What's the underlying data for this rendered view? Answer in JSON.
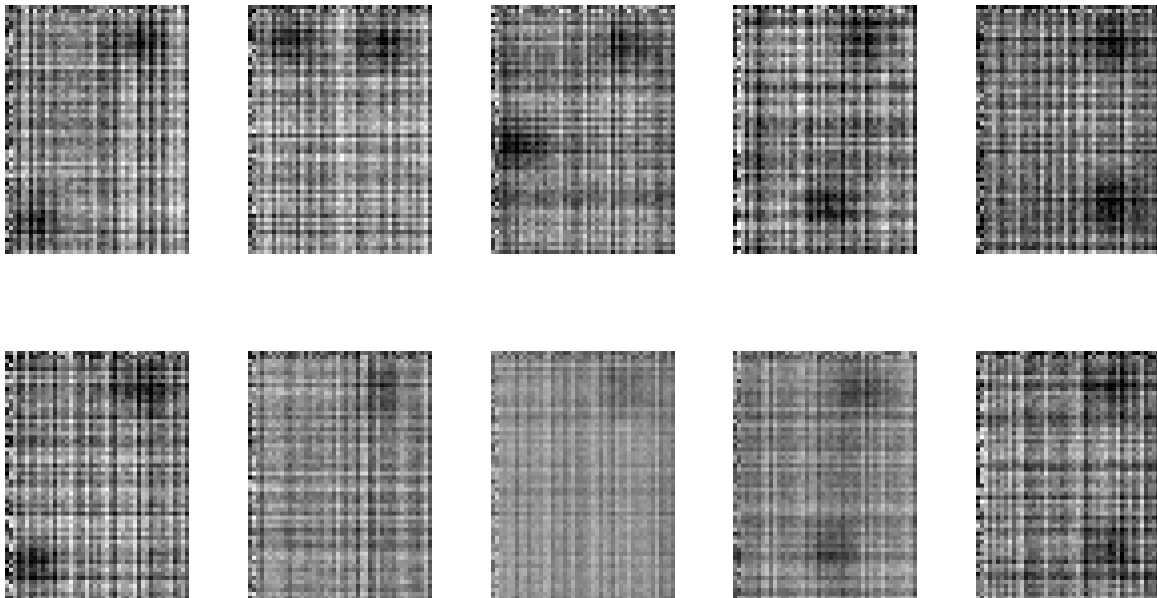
{
  "figure": {
    "rows": 2,
    "cols": 5,
    "panels": [
      {
        "row": 0,
        "col": 0,
        "seed": 11,
        "contrast": 1.0,
        "base": 0.56,
        "dark_regions": [
          "top-right",
          "bottom-left"
        ]
      },
      {
        "row": 0,
        "col": 1,
        "seed": 23,
        "contrast": 0.95,
        "base": 0.58,
        "dark_regions": [
          "top-left",
          "top-right"
        ]
      },
      {
        "row": 0,
        "col": 2,
        "seed": 37,
        "contrast": 0.92,
        "base": 0.52,
        "dark_regions": [
          "top-right",
          "middle-left"
        ]
      },
      {
        "row": 0,
        "col": 3,
        "seed": 41,
        "contrast": 1.05,
        "base": 0.48,
        "dark_regions": [
          "top-right",
          "bottom-middle"
        ]
      },
      {
        "row": 0,
        "col": 4,
        "seed": 53,
        "contrast": 1.0,
        "base": 0.5,
        "dark_regions": [
          "top-right",
          "bottom-right"
        ]
      },
      {
        "row": 1,
        "col": 0,
        "seed": 67,
        "contrast": 1.0,
        "base": 0.56,
        "dark_regions": [
          "top-right",
          "bottom-left"
        ]
      },
      {
        "row": 1,
        "col": 1,
        "seed": 71,
        "contrast": 0.75,
        "base": 0.54,
        "dark_regions": [
          "top-right"
        ]
      },
      {
        "row": 1,
        "col": 2,
        "seed": 83,
        "contrast": 0.45,
        "base": 0.56,
        "dark_regions": [
          "top-right"
        ]
      },
      {
        "row": 1,
        "col": 3,
        "seed": 97,
        "contrast": 0.6,
        "base": 0.54,
        "dark_regions": [
          "top-right",
          "bottom-middle"
        ]
      },
      {
        "row": 1,
        "col": 4,
        "seed": 101,
        "contrast": 0.95,
        "base": 0.5,
        "dark_regions": [
          "top-right",
          "bottom-right"
        ]
      }
    ]
  }
}
